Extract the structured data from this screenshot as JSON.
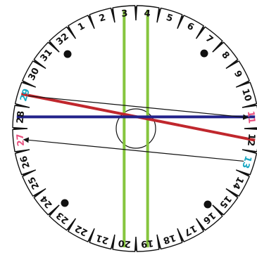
{
  "disk": {
    "slot_count": 32,
    "slots": [
      {
        "n": 1,
        "label": "1",
        "color": "#111111"
      },
      {
        "n": 2,
        "label": "2",
        "color": "#111111"
      },
      {
        "n": 3,
        "label": "3",
        "color": "#111111"
      },
      {
        "n": 4,
        "label": "4",
        "color": "#111111"
      },
      {
        "n": 5,
        "label": "5",
        "color": "#111111"
      },
      {
        "n": 6,
        "label": "6",
        "color": "#111111"
      },
      {
        "n": 7,
        "label": "7",
        "color": "#111111"
      },
      {
        "n": 8,
        "label": "8",
        "color": "#111111"
      },
      {
        "n": 9,
        "label": "9",
        "color": "#111111"
      },
      {
        "n": 10,
        "label": "10",
        "color": "#111111"
      },
      {
        "n": 11,
        "label": "11",
        "color": "#e8507e"
      },
      {
        "n": 12,
        "label": "12",
        "color": "#111111"
      },
      {
        "n": 13,
        "label": "13",
        "color": "#1aa7c2"
      },
      {
        "n": 14,
        "label": "14",
        "color": "#111111"
      },
      {
        "n": 15,
        "label": "15",
        "color": "#111111"
      },
      {
        "n": 16,
        "label": "16",
        "color": "#111111"
      },
      {
        "n": 17,
        "label": "17",
        "color": "#111111"
      },
      {
        "n": 18,
        "label": "18",
        "color": "#111111"
      },
      {
        "n": 19,
        "label": "19",
        "color": "#111111"
      },
      {
        "n": 20,
        "label": "20",
        "color": "#111111"
      },
      {
        "n": 21,
        "label": "21",
        "color": "#111111"
      },
      {
        "n": 22,
        "label": "22",
        "color": "#111111"
      },
      {
        "n": 23,
        "label": "23",
        "color": "#111111"
      },
      {
        "n": 24,
        "label": "24",
        "color": "#111111"
      },
      {
        "n": 25,
        "label": "25",
        "color": "#111111"
      },
      {
        "n": 26,
        "label": "26",
        "color": "#111111"
      },
      {
        "n": 27,
        "label": "27",
        "color": "#e8507e"
      },
      {
        "n": 28,
        "label": "28",
        "color": "#111111"
      },
      {
        "n": 29,
        "label": "29",
        "color": "#1aa7c2"
      },
      {
        "n": 30,
        "label": "30",
        "color": "#111111"
      },
      {
        "n": 31,
        "label": "31",
        "color": "#111111"
      },
      {
        "n": 32,
        "label": "32",
        "color": "#111111"
      }
    ]
  },
  "threads": [
    {
      "name": "green-thread-3-20",
      "from": 3,
      "to": 20,
      "color": "#86c53e"
    },
    {
      "name": "green-thread-4-19",
      "from": 4,
      "to": 19,
      "color": "#86c53e"
    },
    {
      "name": "red-thread-29-12",
      "from": 29,
      "to": 12,
      "color": "#c0272d"
    },
    {
      "name": "navy-thread-28-11",
      "from": 28,
      "to": 11,
      "color": "#23238b"
    }
  ],
  "arrows": [
    {
      "name": "arrow-29-to-11",
      "from": 29,
      "to": 11,
      "color": "#111111"
    },
    {
      "name": "arrow-13-to-27",
      "from": 13,
      "to": 27,
      "color": "#111111"
    }
  ]
}
